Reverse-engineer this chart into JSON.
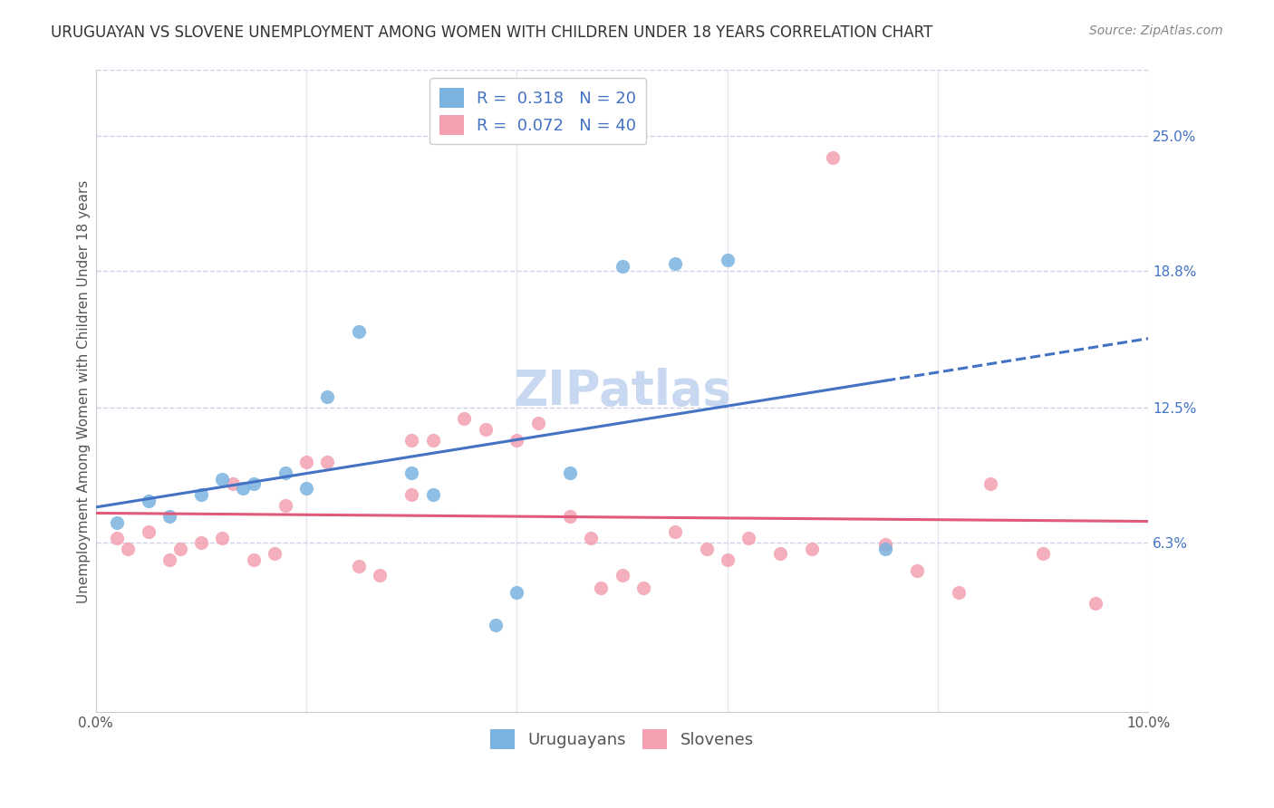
{
  "title": "URUGUAYAN VS SLOVENE UNEMPLOYMENT AMONG WOMEN WITH CHILDREN UNDER 18 YEARS CORRELATION CHART",
  "source": "Source: ZipAtlas.com",
  "ylabel": "Unemployment Among Women with Children Under 18 years",
  "xlabel_bottom_left": "0.0%",
  "xlabel_bottom_right": "10.0%",
  "ytick_labels": [
    "25.0%",
    "18.8%",
    "12.5%",
    "6.3%"
  ],
  "ytick_values": [
    0.25,
    0.188,
    0.125,
    0.063
  ],
  "xlim": [
    0.0,
    0.1
  ],
  "ylim": [
    -0.015,
    0.28
  ],
  "uruguayan_color": "#7ab3e0",
  "slovene_color": "#f4a0b0",
  "trendline_uruguayan_color": "#4472c4",
  "trendline_slovene_color": "#e05a7a",
  "legend_label_uruguayan": "R =  0.318   N = 20",
  "legend_label_slovene": "R =  0.072   N = 40",
  "legend_label_color": "#4472c4",
  "watermark": "ZIPatlas",
  "uruguayan_points": [
    [
      0.002,
      0.072
    ],
    [
      0.005,
      0.082
    ],
    [
      0.007,
      0.075
    ],
    [
      0.01,
      0.085
    ],
    [
      0.012,
      0.092
    ],
    [
      0.014,
      0.088
    ],
    [
      0.015,
      0.09
    ],
    [
      0.018,
      0.095
    ],
    [
      0.02,
      0.088
    ],
    [
      0.022,
      0.13
    ],
    [
      0.025,
      0.16
    ],
    [
      0.03,
      0.095
    ],
    [
      0.032,
      0.085
    ],
    [
      0.038,
      0.025
    ],
    [
      0.04,
      0.04
    ],
    [
      0.045,
      0.095
    ],
    [
      0.05,
      0.19
    ],
    [
      0.055,
      0.191
    ],
    [
      0.06,
      0.193
    ],
    [
      0.075,
      0.06
    ]
  ],
  "slovene_points": [
    [
      0.002,
      0.065
    ],
    [
      0.003,
      0.06
    ],
    [
      0.005,
      0.068
    ],
    [
      0.007,
      0.055
    ],
    [
      0.008,
      0.06
    ],
    [
      0.01,
      0.063
    ],
    [
      0.012,
      0.065
    ],
    [
      0.013,
      0.09
    ],
    [
      0.015,
      0.055
    ],
    [
      0.017,
      0.058
    ],
    [
      0.018,
      0.08
    ],
    [
      0.02,
      0.1
    ],
    [
      0.022,
      0.1
    ],
    [
      0.025,
      0.052
    ],
    [
      0.027,
      0.048
    ],
    [
      0.03,
      0.085
    ],
    [
      0.03,
      0.11
    ],
    [
      0.032,
      0.11
    ],
    [
      0.035,
      0.12
    ],
    [
      0.037,
      0.115
    ],
    [
      0.04,
      0.11
    ],
    [
      0.042,
      0.118
    ],
    [
      0.045,
      0.075
    ],
    [
      0.047,
      0.065
    ],
    [
      0.048,
      0.042
    ],
    [
      0.05,
      0.048
    ],
    [
      0.052,
      0.042
    ],
    [
      0.055,
      0.068
    ],
    [
      0.058,
      0.06
    ],
    [
      0.06,
      0.055
    ],
    [
      0.062,
      0.065
    ],
    [
      0.065,
      0.058
    ],
    [
      0.068,
      0.06
    ],
    [
      0.07,
      0.24
    ],
    [
      0.075,
      0.062
    ],
    [
      0.078,
      0.05
    ],
    [
      0.082,
      0.04
    ],
    [
      0.085,
      0.09
    ],
    [
      0.09,
      0.058
    ],
    [
      0.095,
      0.035
    ]
  ],
  "background_color": "#ffffff",
  "grid_color": "#d0d0e8",
  "title_fontsize": 12,
  "axis_label_fontsize": 11,
  "tick_label_fontsize": 11,
  "legend_fontsize": 13,
  "watermark_fontsize": 38,
  "watermark_color": "#c8d8f0",
  "source_fontsize": 10
}
